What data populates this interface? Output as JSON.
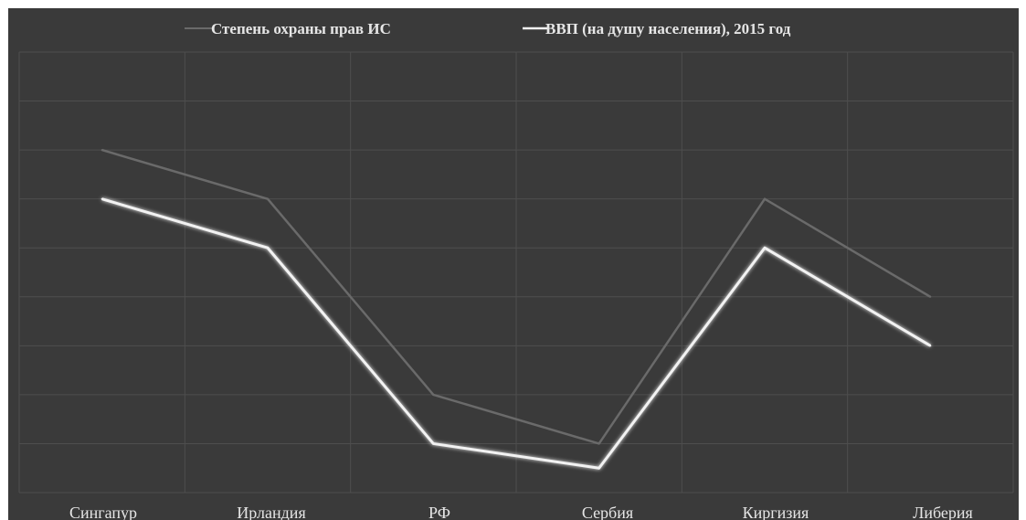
{
  "chart_data": {
    "type": "line",
    "categories": [
      "Сингапур",
      "Ирландия",
      "РФ",
      "Сербия",
      "Киргизия",
      "Либерия"
    ],
    "series": [
      {
        "name": "Степень охраны прав ИС",
        "values": [
          6,
          5,
          1,
          0,
          5,
          3
        ],
        "color": "#6a6a6a"
      },
      {
        "name": "ВВП (на душу населения), 2015 год",
        "values": [
          5,
          4,
          0,
          -0.5,
          4,
          2
        ],
        "color": "#f2f2f2"
      }
    ],
    "ylim": [
      -1,
      8
    ],
    "grid": true,
    "legend_position": "top",
    "background_color": "#3a3a3a"
  }
}
